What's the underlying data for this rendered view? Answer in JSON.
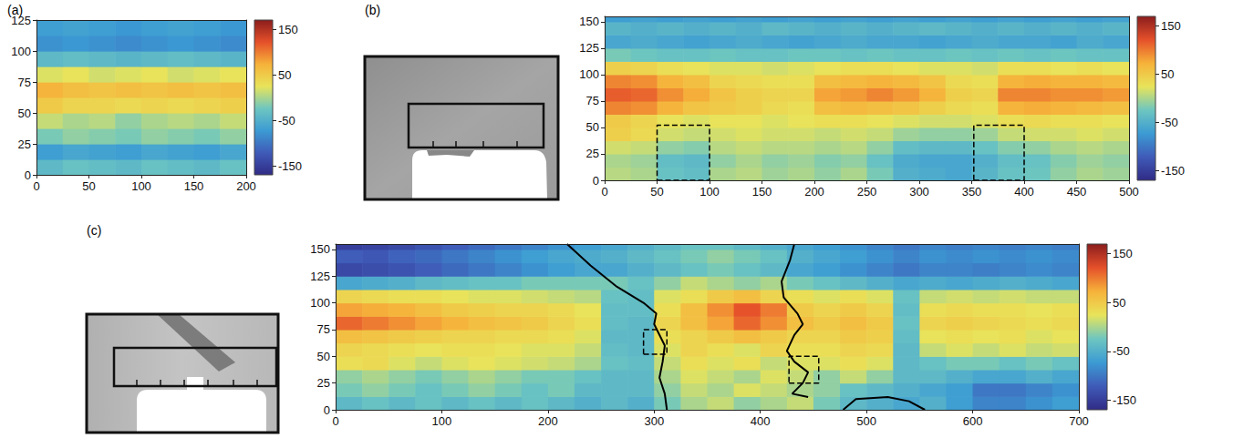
{
  "chart_data": [
    {
      "type": "heatmap",
      "title": "(a)",
      "xlim": [
        0,
        200
      ],
      "xticks": [
        0,
        50,
        100,
        150,
        200
      ],
      "ylim": [
        0,
        125
      ],
      "yticks": [
        0,
        25,
        50,
        75,
        100,
        125
      ],
      "cells": {
        "x_edges": [
          0,
          25,
          50,
          75,
          100,
          125,
          150,
          175,
          200
        ],
        "y_edges": [
          0,
          12.5,
          25,
          37.5,
          50,
          62.5,
          75,
          87.5,
          100,
          112.5,
          125
        ],
        "values": [
          [
            -40,
            -30,
            -35,
            -40,
            -30,
            -35,
            -40,
            -30
          ],
          [
            -70,
            -60,
            -65,
            -70,
            -60,
            -65,
            -70,
            -60
          ],
          [
            -20,
            -10,
            -15,
            -20,
            -10,
            -15,
            -20,
            -10
          ],
          [
            10,
            0,
            5,
            -10,
            0,
            5,
            0,
            10
          ],
          [
            50,
            40,
            40,
            35,
            40,
            35,
            40,
            45
          ],
          [
            70,
            60,
            55,
            60,
            55,
            60,
            55,
            60
          ],
          [
            20,
            25,
            15,
            20,
            25,
            15,
            20,
            25
          ],
          [
            -40,
            -35,
            -40,
            -45,
            -40,
            -35,
            -40,
            -45
          ],
          [
            -80,
            -75,
            -80,
            -85,
            -80,
            -75,
            -80,
            -85
          ],
          [
            -70,
            -65,
            -70,
            -75,
            -70,
            -65,
            -70,
            -75
          ]
        ]
      },
      "colorbar": {
        "lim": [
          -170,
          170
        ],
        "ticks": [
          150,
          50,
          -50,
          -150
        ]
      }
    },
    {
      "type": "heatmap",
      "title": "(b)",
      "xlim": [
        0,
        500
      ],
      "xticks": [
        0,
        50,
        100,
        150,
        200,
        250,
        300,
        350,
        400,
        450,
        500
      ],
      "ylim": [
        0,
        155
      ],
      "yticks": [
        0,
        25,
        50,
        75,
        100,
        125,
        150
      ],
      "cells": {
        "x_edges": [
          0,
          25,
          50,
          75,
          100,
          125,
          150,
          175,
          200,
          225,
          250,
          275,
          300,
          325,
          350,
          375,
          400,
          425,
          450,
          475,
          500
        ],
        "y_edges": [
          0,
          12.5,
          25,
          37.5,
          50,
          62.5,
          75,
          87.5,
          100,
          112.5,
          125,
          137.5,
          150,
          155
        ],
        "values": [
          [
            5,
            0,
            -30,
            -35,
            0,
            5,
            -5,
            0,
            -10,
            0,
            -20,
            -50,
            -55,
            -60,
            -45,
            -30,
            -25,
            -10,
            0,
            -5
          ],
          [
            0,
            -5,
            -35,
            -40,
            -10,
            0,
            -10,
            -5,
            -15,
            -10,
            -30,
            -55,
            -60,
            -60,
            -50,
            -35,
            -30,
            -15,
            -5,
            -10
          ],
          [
            15,
            10,
            -10,
            -15,
            5,
            10,
            5,
            5,
            0,
            5,
            -10,
            -35,
            -40,
            -40,
            -30,
            -15,
            -10,
            0,
            5,
            0
          ],
          [
            45,
            35,
            15,
            10,
            15,
            20,
            15,
            15,
            10,
            15,
            10,
            -5,
            -10,
            -10,
            -5,
            10,
            15,
            15,
            20,
            15
          ],
          [
            50,
            40,
            25,
            20,
            25,
            25,
            20,
            25,
            30,
            30,
            25,
            20,
            15,
            15,
            20,
            30,
            35,
            30,
            30,
            25
          ],
          [
            95,
            90,
            70,
            55,
            50,
            45,
            35,
            30,
            60,
            65,
            60,
            55,
            45,
            35,
            30,
            70,
            75,
            70,
            65,
            60
          ],
          [
            115,
            110,
            90,
            75,
            55,
            45,
            40,
            40,
            80,
            85,
            95,
            85,
            70,
            45,
            40,
            95,
            95,
            90,
            90,
            85
          ],
          [
            95,
            90,
            70,
            60,
            40,
            35,
            30,
            30,
            60,
            65,
            70,
            65,
            55,
            35,
            30,
            70,
            75,
            70,
            70,
            65
          ],
          [
            45,
            40,
            30,
            25,
            20,
            20,
            15,
            20,
            25,
            30,
            30,
            25,
            20,
            20,
            15,
            30,
            30,
            25,
            30,
            25
          ],
          [
            -20,
            -25,
            -30,
            -30,
            -25,
            -30,
            -30,
            -25,
            -25,
            -30,
            -25,
            -30,
            -30,
            -25,
            -30,
            -25,
            -30,
            -25,
            -30,
            -30
          ],
          [
            -60,
            -55,
            -60,
            -65,
            -60,
            -55,
            -60,
            -65,
            -60,
            -55,
            -60,
            -60,
            -65,
            -60,
            -55,
            -60,
            -60,
            -65,
            -55,
            -60
          ],
          [
            -45,
            -50,
            -45,
            -50,
            -45,
            -50,
            -40,
            -45,
            -50,
            -45,
            -50,
            -45,
            -40,
            -45,
            -50,
            -45,
            -50,
            -45,
            -50,
            -45
          ],
          [
            -70,
            -65,
            -70,
            -65,
            -70,
            -65,
            -70,
            -65,
            -70,
            -65,
            -70,
            -65,
            -70,
            -65,
            -70,
            -65,
            -70,
            -65,
            -70,
            -65
          ]
        ]
      },
      "colorbar": {
        "lim": [
          -170,
          170
        ],
        "ticks": [
          150,
          50,
          -50,
          -150
        ]
      },
      "boxes": {
        "line_style": "dashed",
        "color": "#000000",
        "rects": [
          [
            50,
            0,
            100,
            52
          ],
          [
            352,
            0,
            400,
            52
          ]
        ]
      }
    },
    {
      "type": "heatmap",
      "title": "(c)",
      "xlim": [
        0,
        700
      ],
      "xticks": [
        0,
        100,
        200,
        300,
        400,
        500,
        600,
        700
      ],
      "ylim": [
        0,
        155
      ],
      "yticks": [
        0,
        25,
        50,
        75,
        100,
        125,
        150
      ],
      "cells": {
        "x_edges": [
          0,
          25,
          50,
          75,
          100,
          125,
          150,
          175,
          200,
          225,
          250,
          275,
          300,
          325,
          350,
          375,
          400,
          425,
          450,
          475,
          500,
          525,
          550,
          575,
          600,
          625,
          650,
          675,
          700
        ],
        "y_edges": [
          0,
          12.5,
          25,
          37.5,
          50,
          62.5,
          75,
          87.5,
          100,
          112.5,
          125,
          137.5,
          150,
          155
        ],
        "values": [
          [
            -40,
            -30,
            -40,
            -30,
            -40,
            -30,
            -40,
            -30,
            -40,
            -50,
            -40,
            -50,
            -20,
            0,
            10,
            -10,
            0,
            10,
            -20,
            -40,
            -50,
            -60,
            -50,
            -70,
            -90,
            -90,
            -80,
            -70
          ],
          [
            -20,
            -10,
            -20,
            -30,
            -20,
            -10,
            -20,
            -30,
            -20,
            -40,
            -40,
            -40,
            -10,
            10,
            0,
            20,
            10,
            0,
            -10,
            -30,
            -40,
            -50,
            -60,
            -70,
            -100,
            -100,
            -90,
            -80
          ],
          [
            -10,
            0,
            -10,
            -20,
            -10,
            0,
            -10,
            -20,
            -20,
            -30,
            -40,
            -40,
            0,
            20,
            10,
            0,
            20,
            10,
            -10,
            10,
            -10,
            -40,
            -40,
            -50,
            -60,
            -60,
            -50,
            -60
          ],
          [
            30,
            35,
            20,
            10,
            20,
            25,
            20,
            15,
            10,
            0,
            -30,
            -35,
            10,
            30,
            20,
            30,
            10,
            20,
            20,
            30,
            20,
            -40,
            -30,
            -20,
            -20,
            -30,
            -20,
            -30
          ],
          [
            40,
            35,
            30,
            25,
            30,
            30,
            25,
            20,
            20,
            10,
            -35,
            -40,
            20,
            40,
            30,
            20,
            40,
            30,
            30,
            40,
            35,
            -40,
            10,
            20,
            10,
            20,
            10,
            15
          ],
          [
            60,
            55,
            50,
            45,
            40,
            40,
            35,
            35,
            30,
            20,
            -40,
            -40,
            30,
            40,
            50,
            60,
            50,
            40,
            40,
            50,
            45,
            -35,
            25,
            30,
            25,
            30,
            20,
            25
          ],
          [
            110,
            100,
            90,
            80,
            70,
            60,
            55,
            50,
            40,
            30,
            -35,
            -40,
            40,
            60,
            80,
            110,
            90,
            60,
            50,
            60,
            50,
            -30,
            40,
            45,
            40,
            35,
            30,
            35
          ],
          [
            80,
            75,
            70,
            60,
            50,
            45,
            40,
            40,
            35,
            25,
            -35,
            -35,
            30,
            60,
            90,
            120,
            100,
            50,
            40,
            50,
            40,
            -35,
            30,
            35,
            30,
            30,
            25,
            30
          ],
          [
            40,
            35,
            30,
            30,
            25,
            20,
            20,
            15,
            10,
            5,
            -30,
            -35,
            20,
            30,
            50,
            60,
            40,
            30,
            20,
            30,
            20,
            -30,
            10,
            15,
            10,
            15,
            10,
            10
          ],
          [
            -60,
            -55,
            -50,
            -40,
            -35,
            -30,
            -30,
            -20,
            -20,
            -20,
            -20,
            -30,
            -10,
            10,
            0,
            -10,
            0,
            -20,
            -30,
            -40,
            -50,
            -60,
            -55,
            -60,
            -55,
            -50,
            -55,
            -60
          ],
          [
            -140,
            -135,
            -130,
            -120,
            -110,
            -100,
            -90,
            -80,
            -70,
            -60,
            -60,
            -50,
            -40,
            -30,
            -20,
            -30,
            -40,
            -60,
            -70,
            -80,
            -90,
            -100,
            -90,
            -90,
            -95,
            -90,
            -85,
            -90
          ],
          [
            -120,
            -125,
            -115,
            -110,
            -100,
            -90,
            -80,
            -70,
            -60,
            -55,
            -50,
            -40,
            -30,
            -20,
            -10,
            -20,
            -30,
            -50,
            -60,
            -70,
            -80,
            -90,
            -80,
            -85,
            -80,
            -85,
            -80,
            -85
          ],
          [
            -150,
            -145,
            -140,
            -130,
            -120,
            -110,
            -100,
            -90,
            -80,
            -70,
            -60,
            -50,
            -40,
            -30,
            -30,
            -40,
            -50,
            -60,
            -70,
            -80,
            -90,
            -100,
            -90,
            -95,
            -90,
            -95,
            -90,
            -95
          ]
        ]
      },
      "colorbar": {
        "lim": [
          -170,
          170
        ],
        "ticks": [
          150,
          50,
          -50,
          -150
        ]
      },
      "boxes": {
        "line_style": "dashed",
        "color": "#000000",
        "rects": [
          [
            290,
            52,
            312,
            75
          ],
          [
            427,
            25,
            455,
            50
          ]
        ]
      },
      "boundaries": {
        "line_style": "solid",
        "color": "#000000",
        "lines": [
          [
            [
              218,
              155
            ],
            [
              240,
              135
            ],
            [
              265,
              115
            ],
            [
              290,
              100
            ],
            [
              302,
              90
            ],
            [
              300,
              80
            ],
            [
              305,
              70
            ],
            [
              310,
              60
            ],
            [
              308,
              45
            ],
            [
              305,
              30
            ],
            [
              310,
              15
            ],
            [
              312,
              0
            ]
          ],
          [
            [
              432,
              155
            ],
            [
              428,
              140
            ],
            [
              420,
              120
            ],
            [
              422,
              105
            ],
            [
              435,
              90
            ],
            [
              440,
              80
            ],
            [
              432,
              70
            ],
            [
              425,
              55
            ],
            [
              432,
              45
            ],
            [
              445,
              35
            ],
            [
              440,
              25
            ],
            [
              430,
              15
            ],
            [
              445,
              12
            ]
          ],
          [
            [
              478,
              0
            ],
            [
              490,
              10
            ],
            [
              520,
              12
            ],
            [
              540,
              8
            ],
            [
              555,
              0
            ]
          ]
        ]
      }
    }
  ]
}
